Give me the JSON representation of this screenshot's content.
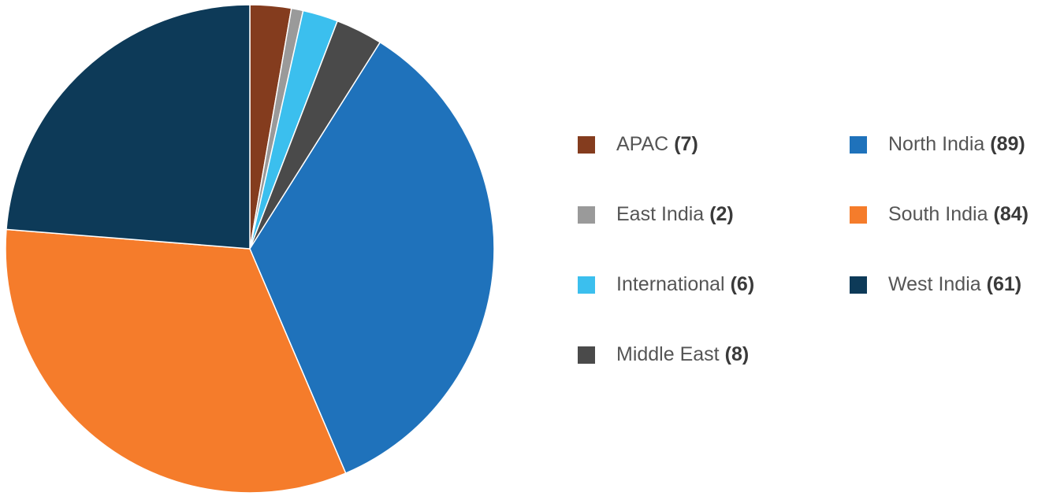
{
  "chart_data": {
    "type": "pie",
    "categories": [
      "APAC",
      "East India",
      "International",
      "Middle East",
      "North India",
      "South India",
      "West India"
    ],
    "values": [
      7,
      2,
      6,
      8,
      89,
      84,
      61
    ],
    "value_labels": [
      "(7)",
      "(2)",
      "(6)",
      "(8)",
      "(89)",
      "(84)",
      "(61)"
    ],
    "colors": [
      "#843c1e",
      "#9a9a9a",
      "#3bbfee",
      "#4a4a4a",
      "#1f72bb",
      "#f57c2b",
      "#0d3a58"
    ],
    "legend": "right"
  }
}
